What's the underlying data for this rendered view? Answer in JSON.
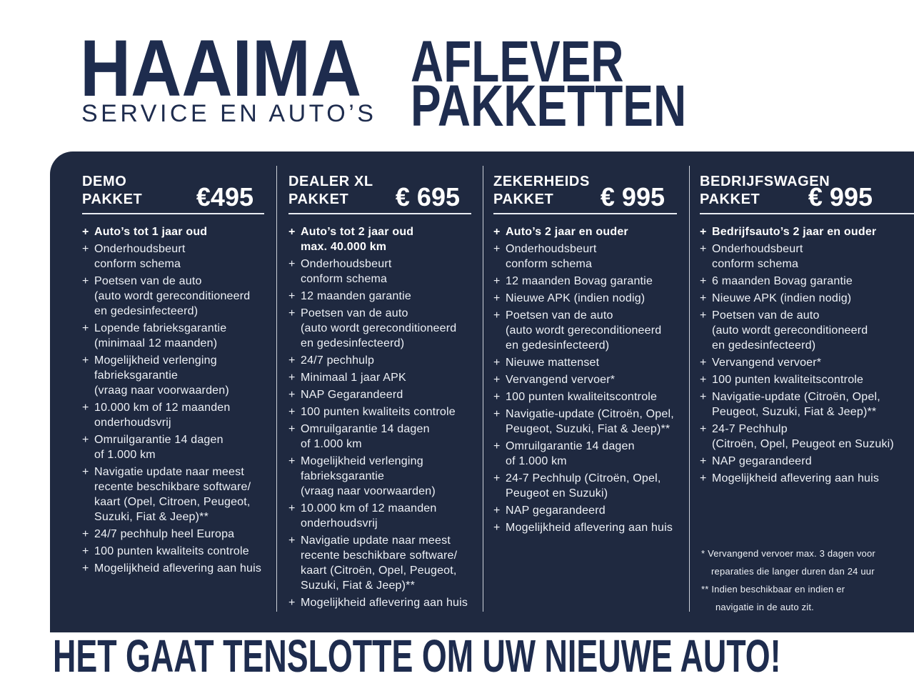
{
  "colors": {
    "navy_text": "#1e2c4e",
    "panel_bg": "#1f2940",
    "panel_text": "#eef1f6",
    "panel_bold_text": "#ffffff",
    "rule": "#e8ebf2"
  },
  "brand": {
    "name": "HAAIMA",
    "tagline": "SERVICE EN AUTO’S"
  },
  "page_title": "AFLEVER\nPAKKETTEN",
  "list_marker": "+",
  "packages": [
    {
      "name": "DEMO\nPAKKET",
      "price": "€495",
      "items": [
        {
          "text": "Auto’s tot 1 jaar oud",
          "bold": true
        },
        {
          "text": "Onderhoudsbeurt\nconform schema"
        },
        {
          "text": "Poetsen van de auto\n(auto wordt gereconditioneerd\nen gedesinfecteerd)"
        },
        {
          "text": "Lopende fabrieksgarantie\n(minimaal 12 maanden)"
        },
        {
          "text": "Mogelijkheid verlenging\nfabrieksgarantie\n(vraag naar voorwaarden)"
        },
        {
          "text": "10.000 km of 12 maanden\nonderhoudsvrij"
        },
        {
          "text": "Omruilgarantie 14 dagen\nof 1.000 km"
        },
        {
          "text": "Navigatie update naar meest\nrecente beschikbare software/\nkaart (Opel, Citroen,  Peugeot,\nSuzuki, Fiat & Jeep)**"
        },
        {
          "text": "24/7 pechhulp heel Europa"
        },
        {
          "text": "100 punten kwaliteits controle"
        },
        {
          "text": "Mogelijkheid aflevering aan huis"
        }
      ]
    },
    {
      "name": "DEALER XL\nPAKKET",
      "price": "€ 695",
      "items": [
        {
          "text": "Auto’s tot 2 jaar oud\nmax. 40.000 km",
          "bold": true
        },
        {
          "text": "Onderhoudsbeurt\nconform schema"
        },
        {
          "text": "12 maanden garantie"
        },
        {
          "text": "Poetsen van de auto\n(auto wordt gereconditioneerd\nen gedesinfecteerd)"
        },
        {
          "text": "24/7 pechhulp"
        },
        {
          "text": "Minimaal 1 jaar APK"
        },
        {
          "text": "NAP Gegarandeerd"
        },
        {
          "text": "100 punten kwaliteits controle"
        },
        {
          "text": "Omruilgarantie 14 dagen\nof 1.000 km"
        },
        {
          "text": "Mogelijkheid verlenging\nfabrieksgarantie\n(vraag naar voorwaarden)"
        },
        {
          "text": "10.000 km of 12 maanden\nonderhoudsvrij"
        },
        {
          "text": "Navigatie update naar meest\nrecente beschikbare software/\nkaart (Citroën, Opel, Peugeot,\nSuzuki, Fiat & Jeep)**"
        },
        {
          "text": "Mogelijkheid aflevering aan huis"
        }
      ]
    },
    {
      "name": "ZEKERHEIDS\nPAKKET",
      "price": "€ 995",
      "items": [
        {
          "text": "Auto’s 2 jaar en ouder",
          "bold": true
        },
        {
          "text": "Onderhoudsbeurt\nconform schema"
        },
        {
          "text": "12 maanden Bovag garantie"
        },
        {
          "text": "Nieuwe APK (indien nodig)"
        },
        {
          "text": "Poetsen van de auto\n(auto wordt gereconditioneerd\nen gedesinfecteerd)"
        },
        {
          "text": "Nieuwe mattenset"
        },
        {
          "text": "Vervangend vervoer*"
        },
        {
          "text": "100 punten kwaliteitscontrole"
        },
        {
          "text": "Navigatie-update (Citroën, Opel,\nPeugeot, Suzuki, Fiat & Jeep)**"
        },
        {
          "text": "Omruilgarantie 14 dagen\nof 1.000 km"
        },
        {
          "text": "24-7 Pechhulp (Citroën, Opel,\nPeugeot en Suzuki)"
        },
        {
          "text": "NAP gegarandeerd"
        },
        {
          "text": "Mogelijkheid aflevering aan huis"
        }
      ]
    },
    {
      "name": "BEDRIJFSWAGEN\nPAKKET",
      "price": "€ 995",
      "items": [
        {
          "text": "Bedrijfsauto’s 2 jaar en ouder",
          "bold": true
        },
        {
          "text": "Onderhoudsbeurt\nconform schema"
        },
        {
          "text": "6 maanden Bovag garantie"
        },
        {
          "text": "Nieuwe APK (indien nodig)"
        },
        {
          "text": "Poetsen van de auto\n(auto wordt gereconditioneerd\nen gedesinfecteerd)"
        },
        {
          "text": "Vervangend vervoer*"
        },
        {
          "text": "100 punten kwaliteitscontrole"
        },
        {
          "text": "Navigatie-update (Citroën, Opel,\nPeugeot, Suzuki, Fiat & Jeep)**"
        },
        {
          "text": "24-7 Pechhulp\n(Citroën, Opel, Peugeot en Suzuki)"
        },
        {
          "text": "NAP gegarandeerd"
        },
        {
          "text": "Mogelijkheid aflevering aan huis"
        }
      ]
    }
  ],
  "footnotes": [
    {
      "text": "* Vervangend vervoer max. 3 dagen voor\nreparaties die langer duren dan 24 uur"
    },
    {
      "text": "** Indien beschikbaar en indien er\nnavigatie in de auto zit."
    }
  ],
  "footer": "HET GAAT TENSLOTTE OM UW NIEUWE AUTO!"
}
